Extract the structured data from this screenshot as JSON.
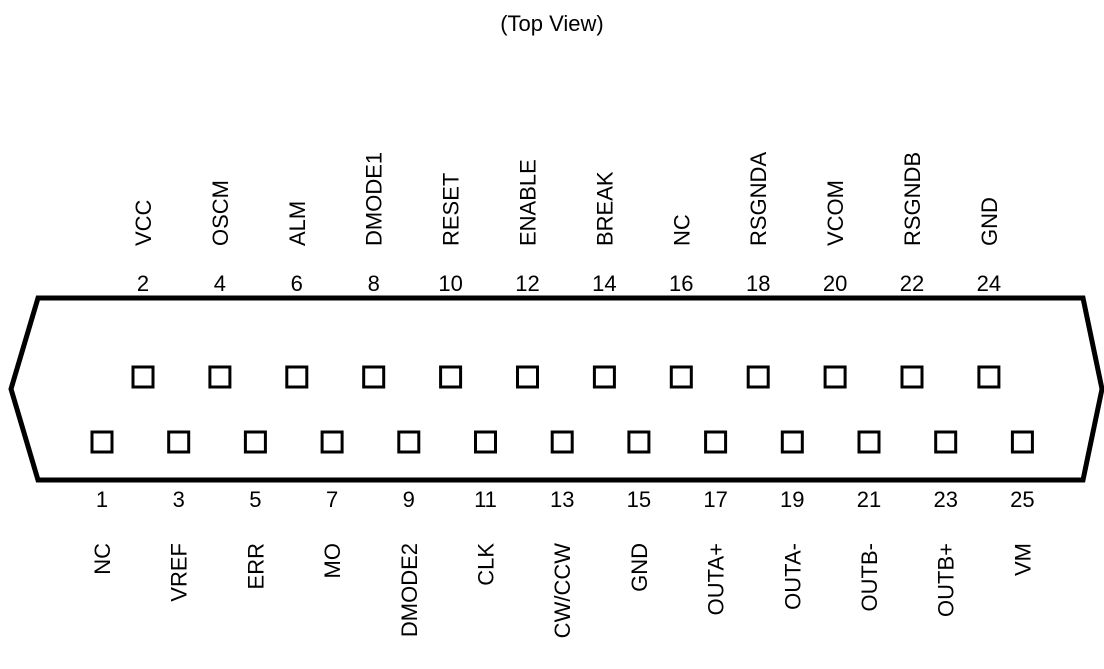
{
  "view_caption": "(Top View)",
  "colors": {
    "stroke": "#000000",
    "background": "#ffffff"
  },
  "top_row": [
    {
      "pin": "2",
      "signal": "VCC"
    },
    {
      "pin": "4",
      "signal": "OSCM"
    },
    {
      "pin": "6",
      "signal": "ALM"
    },
    {
      "pin": "8",
      "signal": "DMODE1"
    },
    {
      "pin": "10",
      "signal": "RESET"
    },
    {
      "pin": "12",
      "signal": "ENABLE"
    },
    {
      "pin": "14",
      "signal": "BREAK"
    },
    {
      "pin": "16",
      "signal": "NC"
    },
    {
      "pin": "18",
      "signal": "RSGNDA"
    },
    {
      "pin": "20",
      "signal": "VCOM"
    },
    {
      "pin": "22",
      "signal": "RSGNDB"
    },
    {
      "pin": "24",
      "signal": "GND"
    }
  ],
  "bottom_row": [
    {
      "pin": "1",
      "signal": "NC"
    },
    {
      "pin": "3",
      "signal": "VREF"
    },
    {
      "pin": "5",
      "signal": "ERR"
    },
    {
      "pin": "7",
      "signal": "MO"
    },
    {
      "pin": "9",
      "signal": "DMODE2"
    },
    {
      "pin": "11",
      "signal": "CLK"
    },
    {
      "pin": "13",
      "signal": "CW/CCW"
    },
    {
      "pin": "15",
      "signal": "GND"
    },
    {
      "pin": "17",
      "signal": "OUTA+"
    },
    {
      "pin": "19",
      "signal": "OUTA-"
    },
    {
      "pin": "21",
      "signal": "OUTB-"
    },
    {
      "pin": "23",
      "signal": "OUTB+"
    },
    {
      "pin": "25",
      "signal": "VM"
    }
  ]
}
